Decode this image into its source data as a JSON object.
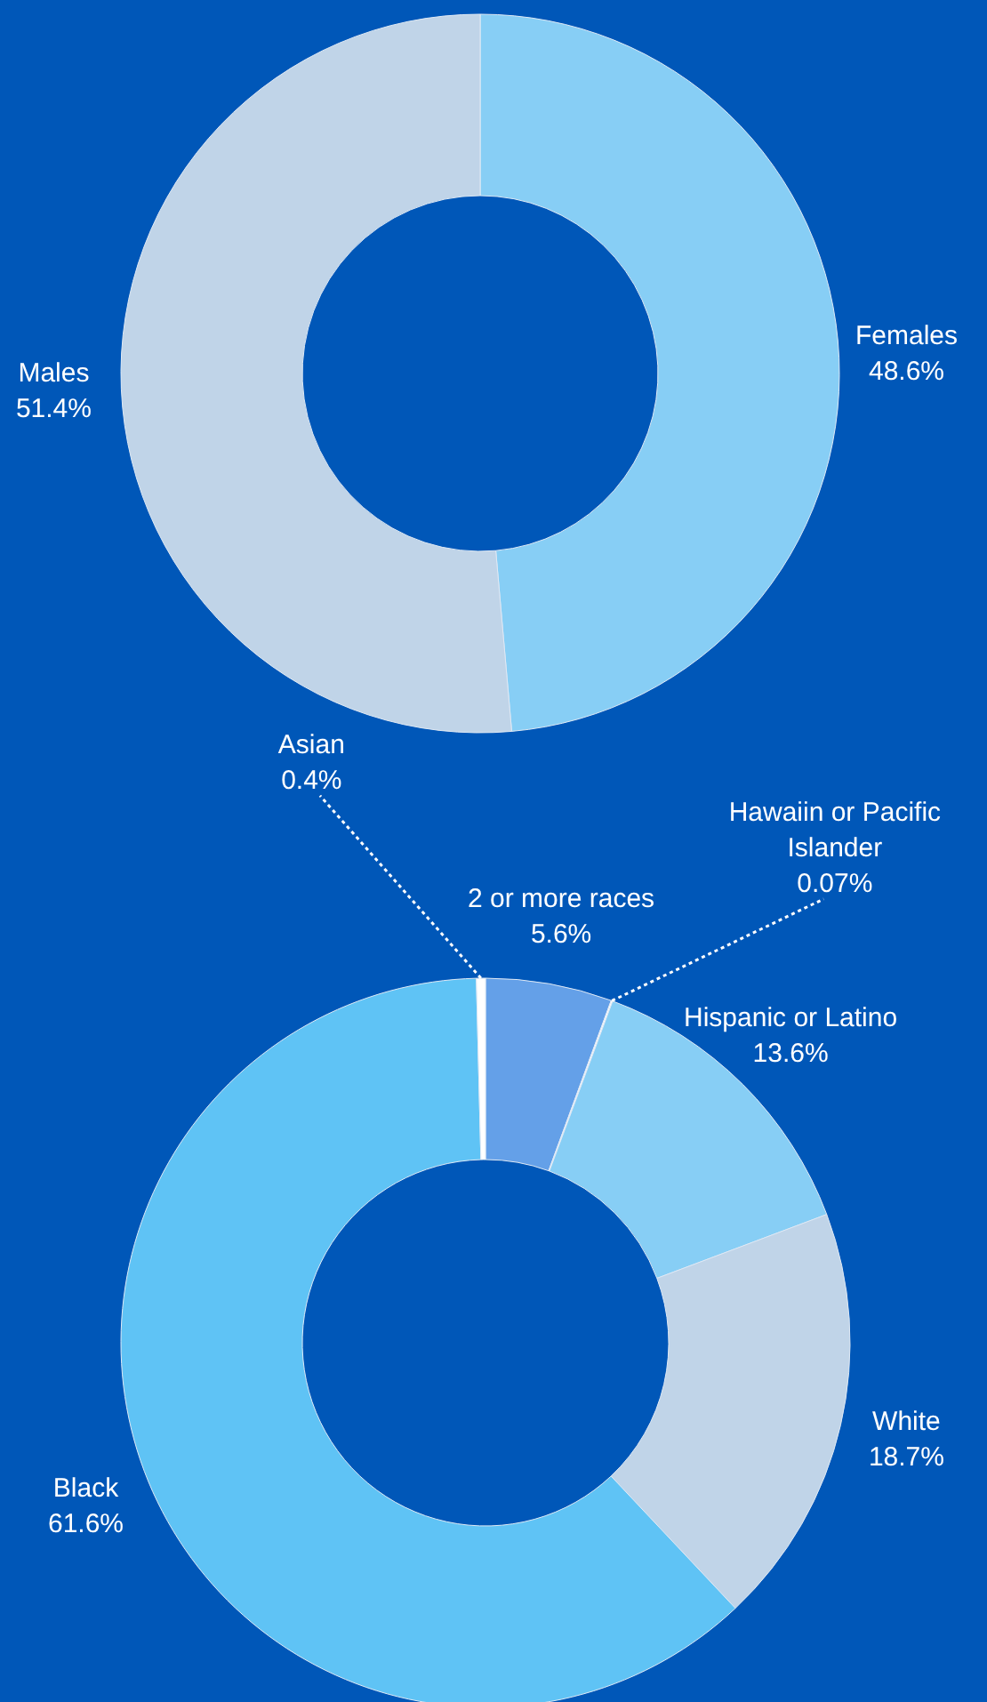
{
  "chart_data": [
    {
      "type": "donut",
      "categories": [
        "Females",
        "Males"
      ],
      "values": [
        48.6,
        51.4
      ],
      "colors": [
        "#87cef5",
        "#c0d4e8"
      ],
      "value_labels": [
        "48.6%",
        "51.4%"
      ]
    },
    {
      "type": "donut",
      "categories": [
        "2 or more races",
        "Hawaiin or Pacific Islander",
        "Hispanic or Latino",
        "White",
        "Black",
        "Asian"
      ],
      "values": [
        5.6,
        0.07,
        13.6,
        18.7,
        61.6,
        0.4
      ],
      "colors": [
        "#64a0e8",
        "#ffffff",
        "#87cef5",
        "#c0d4e8",
        "#5fc3f5",
        "#ffffff"
      ],
      "value_labels": [
        "5.6%",
        "0.07%",
        "13.6%",
        "18.7%",
        "61.6%",
        "0.4%"
      ]
    }
  ]
}
